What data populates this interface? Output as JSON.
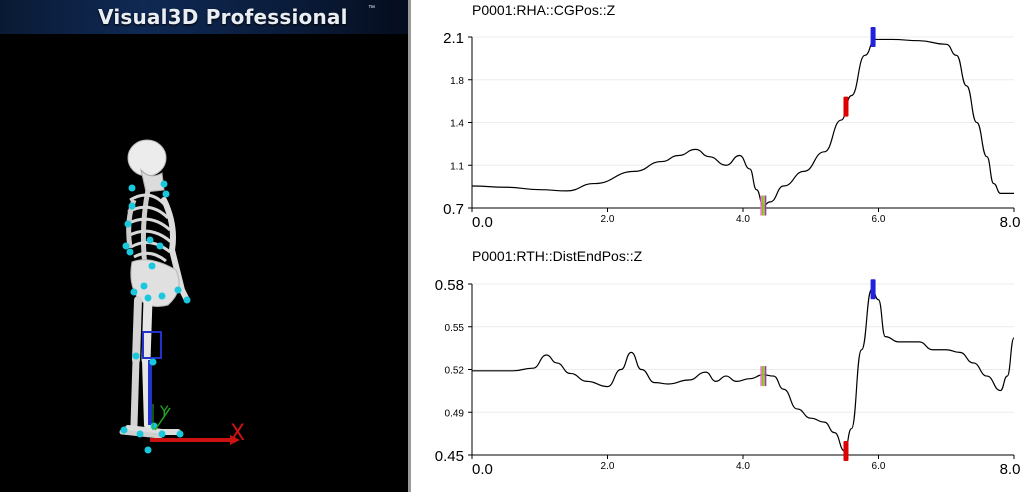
{
  "app": {
    "banner_title": "Visual3D Professional",
    "banner_tm": "™"
  },
  "colors": {
    "background_3d": "#000000",
    "bone": "#e4e4e4",
    "marker": "#19c8dc",
    "axis_x": "#cc1111",
    "axis_y": "#22aa22",
    "axis_z": "#2233cc",
    "trace": "#000000",
    "event_red": "#dd0000",
    "event_blue": "#2222dd",
    "event_multi": [
      "#ff66cc",
      "#66cc33",
      "#ddaa00",
      "#7744cc"
    ]
  },
  "scene": {
    "skeleton_icon": "skeleton-model-icon",
    "axis_label_x": "X",
    "axis_label_y": "Y"
  },
  "chart_data": [
    {
      "type": "line",
      "title": "P0001:RHA::CGPos::Z",
      "xlabel": "",
      "ylabel": "",
      "xlim": [
        0,
        8
      ],
      "ylim": [
        0.7,
        2.1
      ],
      "x_ticks": [
        "0.0",
        "2.0",
        "4.0",
        "6.0",
        "8.0"
      ],
      "y_ticks": [
        "0.7",
        "1.1",
        "1.4",
        "1.8",
        "2.1"
      ],
      "grid": "horizontal",
      "x": [
        0,
        0.5,
        1.0,
        1.4,
        1.8,
        2.4,
        2.8,
        3.05,
        3.3,
        3.5,
        3.75,
        3.95,
        4.1,
        4.2,
        4.3,
        4.4,
        4.6,
        4.9,
        5.2,
        5.45,
        5.6,
        5.8,
        5.95,
        6.2,
        6.6,
        7.0,
        7.15,
        7.3,
        7.45,
        7.6,
        7.7,
        7.8,
        8.0
      ],
      "y": [
        0.88,
        0.87,
        0.85,
        0.84,
        0.9,
        1.0,
        1.08,
        1.13,
        1.18,
        1.12,
        1.05,
        1.13,
        1.02,
        0.85,
        0.72,
        0.75,
        0.88,
        1.0,
        1.16,
        1.42,
        1.62,
        1.95,
        2.08,
        2.08,
        2.07,
        2.04,
        1.95,
        1.7,
        1.4,
        1.12,
        0.9,
        0.82,
        0.82
      ],
      "events": [
        {
          "x": 4.3,
          "y_center": 0.72,
          "color": "multi"
        },
        {
          "x": 5.52,
          "y_center": 1.53,
          "color": "red"
        },
        {
          "x": 5.92,
          "y_center": 2.1,
          "color": "blue"
        }
      ]
    },
    {
      "type": "line",
      "title": "P0001:RTH::DistEndPos::Z",
      "xlabel": "",
      "ylabel": "",
      "xlim": [
        0,
        8
      ],
      "ylim": [
        0.45,
        0.58
      ],
      "x_ticks": [
        "0.0",
        "2.0",
        "4.0",
        "6.0",
        "8.0"
      ],
      "y_ticks": [
        "0.45",
        "0.49",
        "0.52",
        "0.55",
        "0.58"
      ],
      "grid": "horizontal",
      "x": [
        0,
        0.3,
        0.6,
        0.9,
        1.1,
        1.25,
        1.45,
        1.7,
        2.0,
        2.2,
        2.35,
        2.5,
        2.7,
        2.9,
        3.2,
        3.45,
        3.6,
        3.75,
        3.9,
        4.1,
        4.3,
        4.45,
        4.6,
        4.8,
        5.0,
        5.2,
        5.35,
        5.5,
        5.6,
        5.75,
        5.9,
        6.0,
        6.1,
        6.3,
        6.6,
        6.8,
        7.0,
        7.2,
        7.4,
        7.6,
        7.8,
        7.9,
        8.0
      ],
      "y": [
        0.514,
        0.514,
        0.514,
        0.516,
        0.526,
        0.52,
        0.512,
        0.506,
        0.502,
        0.515,
        0.528,
        0.515,
        0.505,
        0.504,
        0.507,
        0.513,
        0.506,
        0.51,
        0.506,
        0.508,
        0.511,
        0.51,
        0.5,
        0.485,
        0.478,
        0.475,
        0.467,
        0.453,
        0.47,
        0.53,
        0.576,
        0.568,
        0.54,
        0.536,
        0.536,
        0.53,
        0.53,
        0.528,
        0.52,
        0.51,
        0.499,
        0.51,
        0.539
      ],
      "events": [
        {
          "x": 4.3,
          "y_center": 0.51,
          "color": "multi"
        },
        {
          "x": 5.52,
          "y_center": 0.453,
          "color": "red"
        },
        {
          "x": 5.92,
          "y_center": 0.576,
          "color": "blue"
        }
      ]
    }
  ]
}
